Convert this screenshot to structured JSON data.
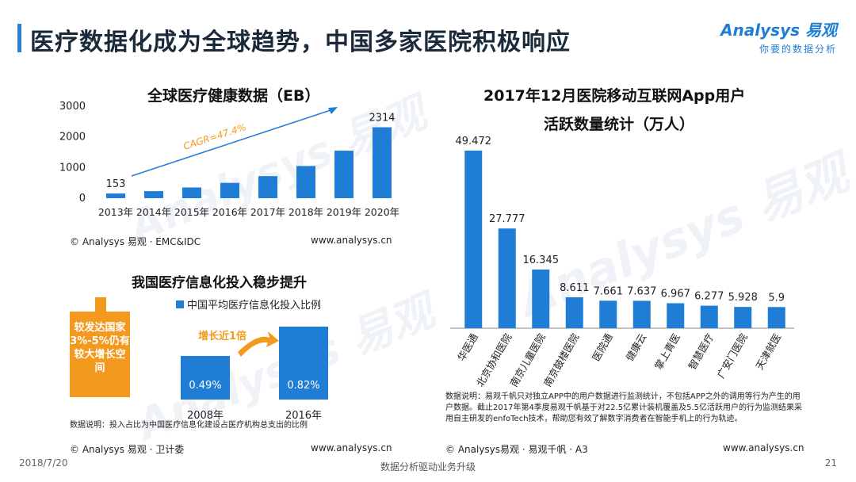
{
  "header": {
    "title": "医疗数据化成为全球趋势，中国多家医院积极响应",
    "brand_name": "Analysys 易观",
    "brand_slogan": "你要的数据分析",
    "accent_color": "#2a7fd4"
  },
  "chart_data": [
    {
      "type": "bar",
      "title": "全球医疗健康数据（EB）",
      "categories": [
        "2013年",
        "2014年",
        "2015年",
        "2016年",
        "2017年",
        "2018年",
        "2019年",
        "2020年"
      ],
      "values": [
        153,
        230,
        350,
        500,
        720,
        1050,
        1550,
        2314
      ],
      "value_labels": [
        "153",
        "",
        "",
        "",
        "",
        "",
        "",
        "2314"
      ],
      "yticks": [
        0,
        1000,
        2000,
        3000
      ],
      "ylim": [
        0,
        3000
      ],
      "annotation": "CAGR=47.4%",
      "bar_color": "#1f7dd6",
      "source": "© Analysys 易观 · EMC&IDC",
      "site": "www.analysys.cn"
    },
    {
      "type": "bar",
      "title": "我国医疗信息化投入稳步提升",
      "legend": "中国平均医疗信息化投入比例",
      "categories": [
        "2008年",
        "2016年"
      ],
      "values": [
        0.49,
        0.82
      ],
      "value_labels": [
        "0.49%",
        "0.82%"
      ],
      "unit": "%",
      "annotation": "增长近1倍",
      "callout": "较发达国家3%-5%仍有较大增长空间",
      "note": "数据说明：投入占比为中国医疗信息化建设占医疗机构总支出的比例",
      "bar_color": "#1f7dd6",
      "highlight_color": "#f39a1e",
      "source": "© Analysys 易观 · 卫计委",
      "site": "www.analysys.cn"
    },
    {
      "type": "bar",
      "title": "2017年12月医院移动互联网App用户活跃数量统计（万人）",
      "title_line1": "2017年12月医院移动互联网App用户",
      "title_line2": "活跃数量统计（万人）",
      "categories": [
        "华医通",
        "北京协和医院",
        "南京儿童医院",
        "南京鼓楼医院",
        "医院通",
        "健康云",
        "掌上青医",
        "智慧医疗",
        "广安门医院",
        "天津就医"
      ],
      "values": [
        49.472,
        27.777,
        16.345,
        8.611,
        7.661,
        7.637,
        6.967,
        6.277,
        5.928,
        5.9
      ],
      "value_labels": [
        "49.472",
        "27.777",
        "16.345",
        "8.611",
        "7.661",
        "7.637",
        "6.967",
        "6.277",
        "5.928",
        "5.9"
      ],
      "ylim": [
        0,
        55
      ],
      "bar_color": "#1f7dd6",
      "note": "数据说明：易观千帆只对独立APP中的用户数据进行监测统计，不包括APP之外的调用等行为产生的用户数据。截止2017年第4季度易观千帆基于对22.5亿累计装机覆盖及5.5亿活跃用户的行为监测结果采用自主研发的enfoTech技术，帮助您有效了解数字消费者在智能手机上的行为轨迹。",
      "source": "© Analysys易观 · 易观千帆 · A3",
      "site": "www.analysys.cn"
    }
  ],
  "footer": {
    "date": "2018/7/20",
    "center": "数据分析驱动业务升级",
    "page": "21"
  }
}
